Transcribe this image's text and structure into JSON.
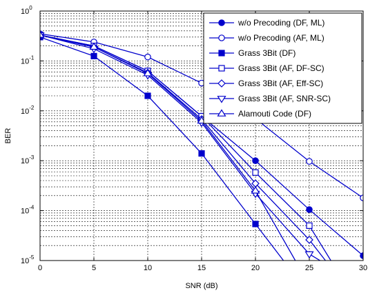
{
  "chart_data": {
    "type": "line",
    "title": "",
    "xlabel": "SNR (dB)",
    "ylabel": "BER",
    "xlim": [
      0,
      30
    ],
    "ylim": [
      1e-05,
      1
    ],
    "yscale": "log",
    "grid": true,
    "legend_position": "top-right",
    "x_ticks": [
      "0",
      "5",
      "10",
      "15",
      "20",
      "25",
      "30"
    ],
    "y_ticks": [
      {
        "base": "10",
        "exp": "0"
      },
      {
        "base": "10",
        "exp": "-1"
      },
      {
        "base": "10",
        "exp": "-2"
      },
      {
        "base": "10",
        "exp": "-3"
      },
      {
        "base": "10",
        "exp": "-4"
      },
      {
        "base": "10",
        "exp": "-5"
      }
    ],
    "line_color": "#0000cc",
    "series": [
      {
        "name": "w/o Precoding (DF, ML)",
        "marker": "circle-filled",
        "x": [
          0,
          5,
          10,
          15,
          20,
          25,
          30
        ],
        "y": [
          0.33,
          0.2,
          0.063,
          0.0078,
          0.001,
          0.000105,
          1.25e-05
        ]
      },
      {
        "name": "w/o Precoding (AF, ML)",
        "marker": "circle-open",
        "x": [
          0,
          5,
          10,
          15,
          20,
          25,
          30
        ],
        "y": [
          0.35,
          0.24,
          0.12,
          0.036,
          0.007,
          0.00097,
          0.00018
        ]
      },
      {
        "name": "Grass 3Bit (DF)",
        "marker": "square-filled",
        "x": [
          0,
          5,
          10,
          15,
          20,
          22.6
        ],
        "y": [
          0.3,
          0.125,
          0.02,
          0.0014,
          5.4e-05,
          1e-05
        ]
      },
      {
        "name": "Grass 3Bit (AF, DF-SC)",
        "marker": "square-open",
        "x": [
          0,
          5,
          10,
          15,
          20,
          25,
          27
        ],
        "y": [
          0.33,
          0.2,
          0.063,
          0.0078,
          0.00058,
          5e-05,
          1e-05
        ]
      },
      {
        "name": "Grass 3Bit (AF, Eff-SC)",
        "marker": "diamond-open",
        "x": [
          0,
          5,
          10,
          15,
          20,
          25,
          26.5
        ],
        "y": [
          0.33,
          0.19,
          0.058,
          0.0068,
          0.00035,
          2.6e-05,
          1e-05
        ]
      },
      {
        "name": "Grass 3Bit (AF, SNR-SC)",
        "marker": "triangle-down-open",
        "x": [
          0,
          5,
          10,
          15,
          20,
          25,
          26
        ],
        "y": [
          0.33,
          0.175,
          0.052,
          0.0058,
          0.00022,
          1.35e-05,
          1e-05
        ]
      },
      {
        "name": "Alamouti Code (DF)",
        "marker": "triangle-up-open",
        "x": [
          0,
          5,
          10,
          15,
          20,
          23.7
        ],
        "y": [
          0.33,
          0.19,
          0.056,
          0.0063,
          0.00025,
          1e-05
        ]
      }
    ]
  }
}
